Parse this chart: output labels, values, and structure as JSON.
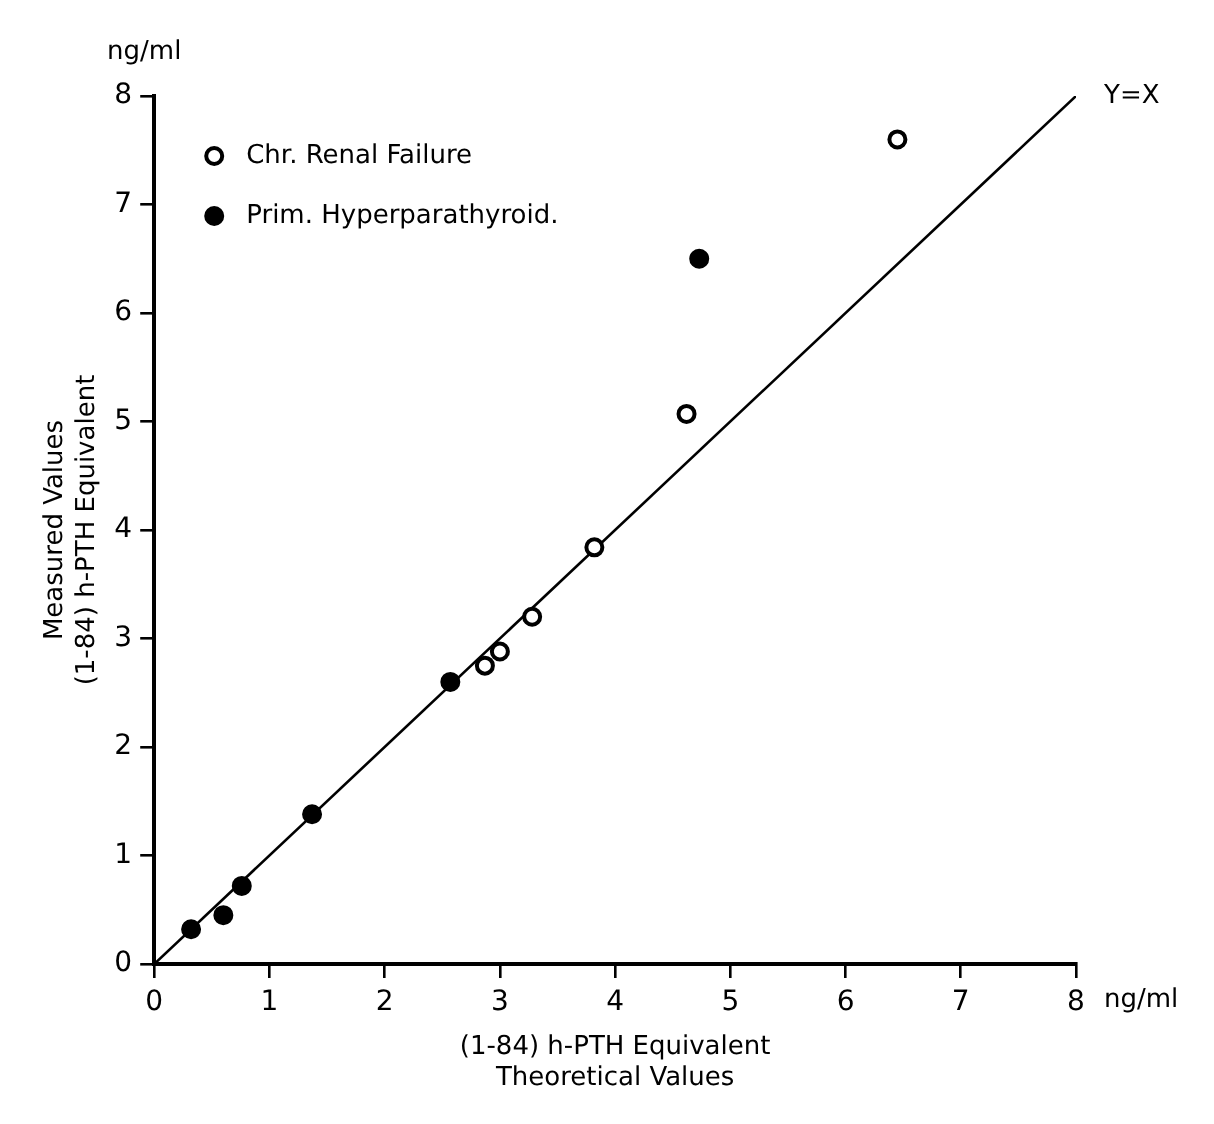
{
  "chart_data": {
    "type": "scatter",
    "xlabel": "(1-84) h-PTH Equivalent\nTheoretical Values",
    "ylabel": "Measured Values\n(1-84) h-PTH Equivalent",
    "xlim": [
      0,
      8
    ],
    "ylim": [
      0,
      8
    ],
    "xticks": [
      0,
      1,
      2,
      3,
      4,
      5,
      6,
      7,
      8
    ],
    "yticks": [
      0,
      1,
      2,
      3,
      4,
      5,
      6,
      7,
      8
    ],
    "series": [
      {
        "name": "Chr. Renal Failure",
        "color": "#000000",
        "x": [
          2.87,
          3.0,
          3.28,
          3.82,
          4.62,
          6.45
        ],
        "values": [
          2.75,
          2.88,
          3.2,
          3.84,
          5.07,
          7.6
        ]
      },
      {
        "name": "Prim. Hyperparathyroid.",
        "color": "#000000",
        "x": [
          0.32,
          0.6,
          0.76,
          1.37,
          2.57,
          4.73
        ],
        "values": [
          0.32,
          0.45,
          0.72,
          1.38,
          2.6,
          6.5
        ]
      },
      {
        "name": "Y=X",
        "type": "line",
        "marker": "none",
        "color": "#000000",
        "x": [
          0,
          8
        ],
        "values": [
          0,
          8
        ]
      }
    ],
    "marker": "circle",
    "legend": "top left",
    "grid": false,
    "annotations": [
      "ng/ml",
      "ng/ml"
    ]
  }
}
